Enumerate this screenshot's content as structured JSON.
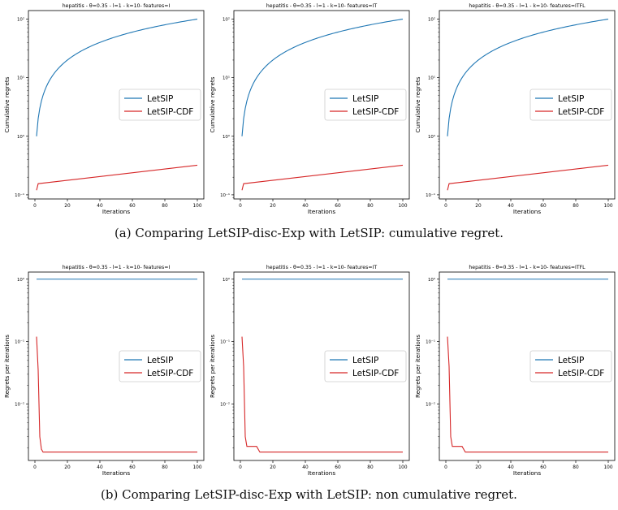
{
  "captions": {
    "a": "(a) Comparing LetSIP-disc-Exp with LetSIP: cumulative regret.",
    "b": "(b) Comparing LetSIP-disc-Exp with LetSIP: non cumulative regret."
  },
  "colors": {
    "letsip": "#1f77b4",
    "letsip_cdf": "#d62728"
  },
  "chart_data": [
    {
      "type": "line",
      "log_y": true,
      "title": "hepatitis - θ=0.35 - l=1 - k=10- features=I",
      "xlabel": "Iterations",
      "ylabel": "Cumulative regrets",
      "xlim": [
        -4,
        104
      ],
      "ylim": [
        0.085,
        140
      ],
      "xticks": [
        "0",
        "20",
        "40",
        "60",
        "80",
        "100"
      ],
      "yticks": [
        "10⁻¹",
        "10⁰",
        "10¹",
        "10²"
      ],
      "legend": "center-right",
      "series": [
        {
          "name": "LetSIP",
          "shape": "cum",
          "start": 1,
          "end": 100
        },
        {
          "name": "LetSIP-CDF",
          "shape": "cumcdf",
          "points": [
            [
              1,
              0.12
            ],
            [
              2,
              0.155
            ],
            [
              100,
              0.32
            ]
          ]
        }
      ]
    },
    {
      "type": "line",
      "log_y": true,
      "title": "hepatitis - θ=0.35 - l=1 - k=10- features=IT",
      "xlabel": "Iterations",
      "ylabel": "Cumulative regrets",
      "xlim": [
        -4,
        104
      ],
      "ylim": [
        0.085,
        140
      ],
      "xticks": [
        "0",
        "20",
        "40",
        "60",
        "80",
        "100"
      ],
      "yticks": [
        "10⁻¹",
        "10⁰",
        "10¹",
        "10²"
      ],
      "legend": "center-right",
      "series": [
        {
          "name": "LetSIP",
          "shape": "cum",
          "start": 1,
          "end": 100
        },
        {
          "name": "LetSIP-CDF",
          "shape": "cumcdf",
          "points": [
            [
              1,
              0.12
            ],
            [
              2,
              0.155
            ],
            [
              100,
              0.32
            ]
          ]
        }
      ]
    },
    {
      "type": "line",
      "log_y": true,
      "title": "hepatitis - θ=0.35 - l=1 - k=10- features=ITFL",
      "xlabel": "Iterations",
      "ylabel": "Cumulative regrets",
      "xlim": [
        -4,
        104
      ],
      "ylim": [
        0.085,
        140
      ],
      "xticks": [
        "0",
        "20",
        "40",
        "60",
        "80",
        "100"
      ],
      "yticks": [
        "10⁻¹",
        "10⁰",
        "10¹",
        "10²"
      ],
      "legend": "center-right",
      "series": [
        {
          "name": "LetSIP",
          "shape": "cum",
          "start": 1,
          "end": 100
        },
        {
          "name": "LetSIP-CDF",
          "shape": "cumcdf",
          "points": [
            [
              1,
              0.12
            ],
            [
              2,
              0.155
            ],
            [
              100,
              0.32
            ]
          ]
        }
      ]
    },
    {
      "type": "line",
      "log_y": true,
      "title": "hepatitis - θ=0.35 - l=1 - k=10- features=I",
      "xlabel": "Iterations",
      "ylabel": "Regrets per iterations",
      "xlim": [
        -4,
        104
      ],
      "ylim": [
        0.00125,
        1.3
      ],
      "xticks": [
        "0",
        "20",
        "40",
        "60",
        "80",
        "100"
      ],
      "yticks": [
        "10⁻²",
        "10⁻¹",
        "10⁰"
      ],
      "legend": "center-right",
      "series": [
        {
          "name": "LetSIP",
          "points": [
            [
              1,
              1.0
            ],
            [
              100,
              1.0
            ]
          ]
        },
        {
          "name": "LetSIP-CDF",
          "points": [
            [
              1,
              0.12
            ],
            [
              2,
              0.035
            ],
            [
              3,
              0.003
            ],
            [
              4,
              0.0019
            ],
            [
              5,
              0.0017
            ],
            [
              100,
              0.0017
            ]
          ]
        }
      ]
    },
    {
      "type": "line",
      "log_y": true,
      "title": "hepatitis - θ=0.35 - l=1 - k=10- features=IT",
      "xlabel": "Iterations",
      "ylabel": "Regrets per iterations",
      "xlim": [
        -4,
        104
      ],
      "ylim": [
        0.00125,
        1.3
      ],
      "xticks": [
        "0",
        "20",
        "40",
        "60",
        "80",
        "100"
      ],
      "yticks": [
        "10⁻²",
        "10⁻¹",
        "10⁰"
      ],
      "legend": "center-right",
      "series": [
        {
          "name": "LetSIP",
          "points": [
            [
              1,
              1.0
            ],
            [
              100,
              1.0
            ]
          ]
        },
        {
          "name": "LetSIP-CDF",
          "points": [
            [
              1,
              0.12
            ],
            [
              2,
              0.04
            ],
            [
              3,
              0.003
            ],
            [
              4,
              0.0021
            ],
            [
              10,
              0.0021
            ],
            [
              12,
              0.0017
            ],
            [
              100,
              0.0017
            ]
          ]
        }
      ]
    },
    {
      "type": "line",
      "log_y": true,
      "title": "hepatitis - θ=0.35 - l=1 - k=10- features=ITFL",
      "xlabel": "Iterations",
      "ylabel": "Regrets per iterations",
      "xlim": [
        -4,
        104
      ],
      "ylim": [
        0.00125,
        1.3
      ],
      "xticks": [
        "0",
        "20",
        "40",
        "60",
        "80",
        "100"
      ],
      "yticks": [
        "10⁻²",
        "10⁻¹",
        "10⁰"
      ],
      "legend": "center-right",
      "series": [
        {
          "name": "LetSIP",
          "points": [
            [
              1,
              1.0
            ],
            [
              100,
              1.0
            ]
          ]
        },
        {
          "name": "LetSIP-CDF",
          "points": [
            [
              1,
              0.12
            ],
            [
              2,
              0.04
            ],
            [
              3,
              0.003
            ],
            [
              4,
              0.0021
            ],
            [
              10,
              0.0021
            ],
            [
              12,
              0.0017
            ],
            [
              100,
              0.0017
            ]
          ]
        }
      ]
    }
  ]
}
